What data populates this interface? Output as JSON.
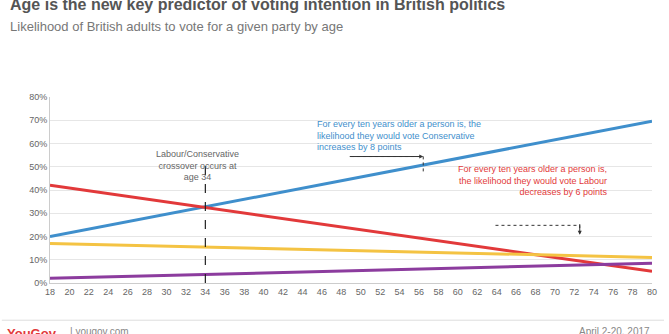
{
  "chart_data": {
    "type": "line",
    "title": "Age is the new key predictor of voting intention in British politics",
    "subtitle": "Likelihood of British adults to vote for a given party by age",
    "x": [
      18,
      80
    ],
    "series": [
      {
        "color": "#3f8fcc",
        "values": [
          20,
          69.6
        ]
      },
      {
        "color": "#e2393a",
        "values": [
          42,
          5
        ]
      },
      {
        "color": "#f4c343",
        "values": [
          17,
          11
        ]
      },
      {
        "color": "#8c3c9e",
        "values": [
          2,
          8.5
        ]
      }
    ],
    "xlim": [
      18,
      80
    ],
    "xticks": [
      18,
      20,
      22,
      24,
      26,
      28,
      30,
      32,
      34,
      36,
      38,
      40,
      42,
      44,
      46,
      48,
      50,
      52,
      54,
      56,
      58,
      60,
      62,
      64,
      66,
      68,
      70,
      72,
      74,
      76,
      78,
      80
    ],
    "ylim": [
      0,
      80
    ],
    "yticks": [
      {
        "value": 0,
        "label": "0%"
      },
      {
        "value": 10,
        "label": "10%"
      },
      {
        "value": 20,
        "label": "20%"
      },
      {
        "value": 30,
        "label": "30%"
      },
      {
        "value": 40,
        "label": "40%"
      },
      {
        "value": 50,
        "label": "50%"
      },
      {
        "value": 60,
        "label": "60%"
      },
      {
        "value": 70,
        "label": "70%"
      },
      {
        "value": 80,
        "label": "80%"
      }
    ],
    "grid": true,
    "vlines": [
      34
    ],
    "annotations": [
      {
        "lines": [
          "For every ten years older a person is, the",
          "likelihood they would vote Conservative",
          "increases by 8 points"
        ],
        "color": "#3f8fcc"
      },
      {
        "lines": [
          "Labour/Conservative",
          "crossover occurs at",
          "age 34"
        ],
        "color": "#666666"
      },
      {
        "lines": [
          "For every ten years older a person is,",
          "the likelihood they would vote Labour",
          "decreases by 6 points"
        ],
        "color": "#e2393a"
      }
    ],
    "footer": {
      "logo": "YouGov",
      "source": "| yougov.com",
      "date": "April 2-20, 2017"
    }
  }
}
